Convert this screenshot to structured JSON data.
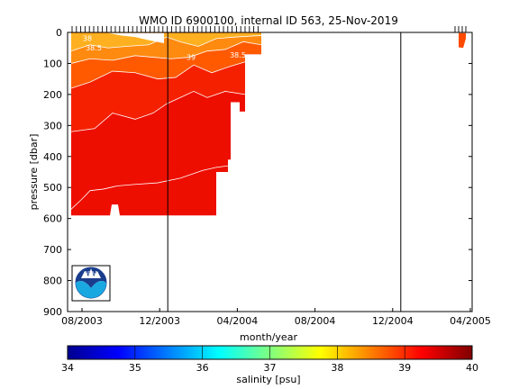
{
  "chart_data": {
    "type": "heatmap",
    "title": "WMO ID 6900100, internal ID 563, 25-Nov-2019",
    "xlabel": "month/year",
    "ylabel": "pressure [dbar]",
    "x_ticks": [
      "08/2003",
      "12/2003",
      "04/2004",
      "08/2004",
      "12/2004",
      "04/2005"
    ],
    "y_ticks": [
      "0",
      "100",
      "200",
      "300",
      "400",
      "500",
      "600",
      "700",
      "800",
      "900"
    ],
    "ylim": [
      0,
      900
    ],
    "y_reversed": true,
    "colorbar": {
      "label": "salinity [psu]",
      "ticks": [
        "34",
        "35",
        "36",
        "37",
        "38",
        "39",
        "40"
      ],
      "range": [
        34,
        40
      ],
      "colormap": "jet"
    },
    "vertical_lines": [
      "12/2003",
      "12/2004"
    ],
    "contour_labels": [
      "38",
      "38.5",
      "39",
      "38.5"
    ],
    "salinity_layers": [
      {
        "range": [
          37.0,
          38.0
        ],
        "color": "#ffb020"
      },
      {
        "range": [
          38.0,
          38.5
        ],
        "color": "#ff8a10"
      },
      {
        "range": [
          38.5,
          39.0
        ],
        "color": "#ff5a00"
      },
      {
        "range": [
          39.0,
          39.5
        ],
        "color": "#f52000"
      },
      {
        "range": [
          39.5,
          40.0
        ],
        "color": "#ee0e00"
      }
    ]
  }
}
